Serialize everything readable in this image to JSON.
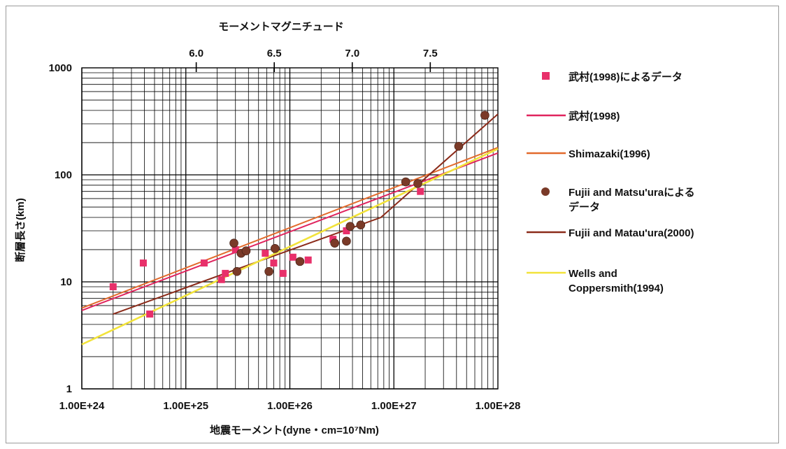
{
  "chart_data": {
    "type": "scatter",
    "title": "",
    "top_axis_label": "モーメントマグニチュード",
    "top_ticks": [
      {
        "value": 6.0,
        "label": "6.0"
      },
      {
        "value": 6.5,
        "label": "6.5"
      },
      {
        "value": 7.0,
        "label": "7.0"
      },
      {
        "value": 7.5,
        "label": "7.5"
      }
    ],
    "xlabel": "地震モーメント(dyne・cm=10⁷Nm)",
    "ylabel": "断層長さ(km)",
    "x_scale": "log",
    "y_scale": "log",
    "xlim": [
      1e+24,
      1e+28
    ],
    "ylim": [
      1,
      1000
    ],
    "x_tick_labels": [
      "1.00E+24",
      "1.00E+25",
      "1.00E+26",
      "1.00E+27",
      "1.00E+28"
    ],
    "y_tick_labels": [
      "1",
      "10",
      "100",
      "1000"
    ],
    "grid": true,
    "legend_position": "right",
    "series": [
      {
        "name": "武村(1998)によるデータ",
        "kind": "points",
        "marker": "square",
        "color": "#e8306a",
        "points": [
          {
            "x": 2e+24,
            "y": 9
          },
          {
            "x": 3.9e+24,
            "y": 15
          },
          {
            "x": 4.5e+24,
            "y": 5
          },
          {
            "x": 1.5e+25,
            "y": 15
          },
          {
            "x": 2.2e+25,
            "y": 10.5
          },
          {
            "x": 2.4e+25,
            "y": 12
          },
          {
            "x": 3e+25,
            "y": 20
          },
          {
            "x": 5.8e+25,
            "y": 18.5
          },
          {
            "x": 7e+25,
            "y": 15
          },
          {
            "x": 8.6e+25,
            "y": 12
          },
          {
            "x": 1.07e+26,
            "y": 17
          },
          {
            "x": 1.5e+26,
            "y": 16
          },
          {
            "x": 2.6e+26,
            "y": 25
          },
          {
            "x": 3.5e+26,
            "y": 30
          },
          {
            "x": 1.8e+27,
            "y": 70
          }
        ]
      },
      {
        "name": "武村(1998)",
        "kind": "line",
        "color": "#e0245e",
        "points": [
          {
            "x": 1e+24,
            "y": 5.4
          },
          {
            "x": 1e+28,
            "y": 160
          }
        ]
      },
      {
        "name": "Shimazaki(1996)",
        "kind": "line",
        "color": "#e26a2c",
        "points": [
          {
            "x": 1e+24,
            "y": 5.7
          },
          {
            "x": 1e+28,
            "y": 180
          }
        ]
      },
      {
        "name": "Fujii and Matsu'uraによるデータ",
        "kind": "points",
        "marker": "circle",
        "color": "#7a3a28",
        "points": [
          {
            "x": 2.9e+25,
            "y": 23
          },
          {
            "x": 3.1e+25,
            "y": 12.5
          },
          {
            "x": 3.4e+25,
            "y": 18.5
          },
          {
            "x": 3.8e+25,
            "y": 19.5
          },
          {
            "x": 6.3e+25,
            "y": 12.5
          },
          {
            "x": 7.2e+25,
            "y": 20.5
          },
          {
            "x": 1.25e+26,
            "y": 15.5
          },
          {
            "x": 2.7e+26,
            "y": 23
          },
          {
            "x": 3.5e+26,
            "y": 24
          },
          {
            "x": 3.8e+26,
            "y": 33
          },
          {
            "x": 4.8e+26,
            "y": 34
          },
          {
            "x": 1.3e+27,
            "y": 86
          },
          {
            "x": 1.7e+27,
            "y": 83
          },
          {
            "x": 4.2e+27,
            "y": 185
          },
          {
            "x": 7.5e+27,
            "y": 360
          }
        ]
      },
      {
        "name": "Fujii and Matau'ura(2000)",
        "kind": "line",
        "color": "#8b2b1a",
        "points": [
          {
            "x": 2e+24,
            "y": 5
          },
          {
            "x": 3e+25,
            "y": 13
          },
          {
            "x": 7.5e+26,
            "y": 40
          },
          {
            "x": 1e+28,
            "y": 370
          }
        ]
      },
      {
        "name": "Wells and Coppersmith(1994)",
        "kind": "line",
        "color": "#f2e33a",
        "points": [
          {
            "x": 1e+24,
            "y": 2.6
          },
          {
            "x": 1e+28,
            "y": 175
          }
        ]
      }
    ],
    "legend": [
      {
        "kind": "square",
        "color": "#e8306a",
        "lines": [
          "武村(1998)によるデータ"
        ]
      },
      {
        "kind": "line",
        "color": "#e0245e",
        "lines": [
          "武村(1998)"
        ]
      },
      {
        "kind": "line",
        "color": "#e26a2c",
        "lines": [
          "Shimazaki(1996)"
        ]
      },
      {
        "kind": "circle",
        "color": "#7a3a28",
        "lines": [
          "Fujii and Matsu'uraによる",
          "データ"
        ]
      },
      {
        "kind": "line",
        "color": "#8b2b1a",
        "lines": [
          "Fujii and Matau'ura(2000)"
        ]
      },
      {
        "kind": "line",
        "color": "#f2e33a",
        "lines": [
          "Wells and",
          "Coppersmith(1994)"
        ]
      }
    ]
  }
}
